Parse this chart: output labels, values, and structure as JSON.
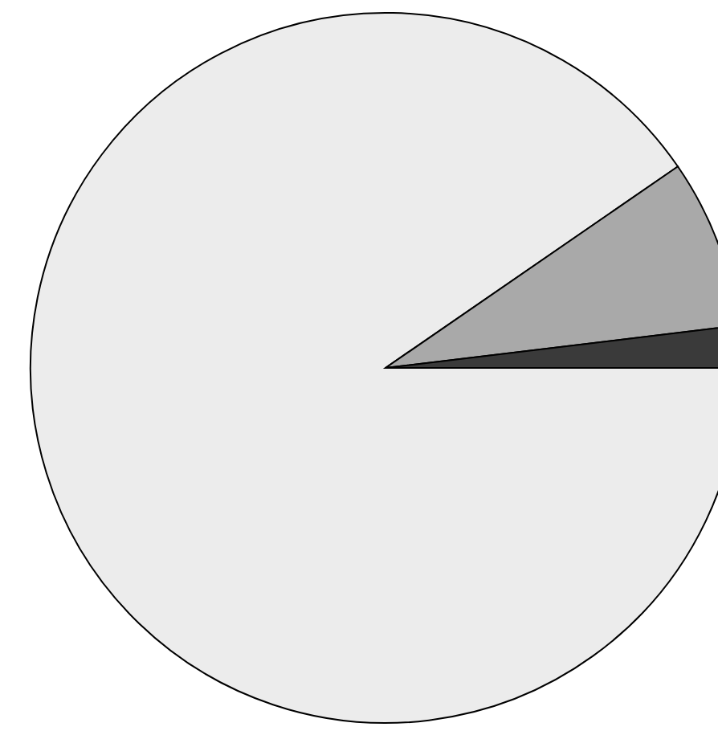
{
  "chart_data": {
    "type": "pie",
    "categories": [
      null,
      null,
      null
    ],
    "values": [
      90.4,
      7.7,
      1.9
    ],
    "colors": [
      "#ececec",
      "#a9a9a9",
      "#3a3a3a"
    ]
  }
}
